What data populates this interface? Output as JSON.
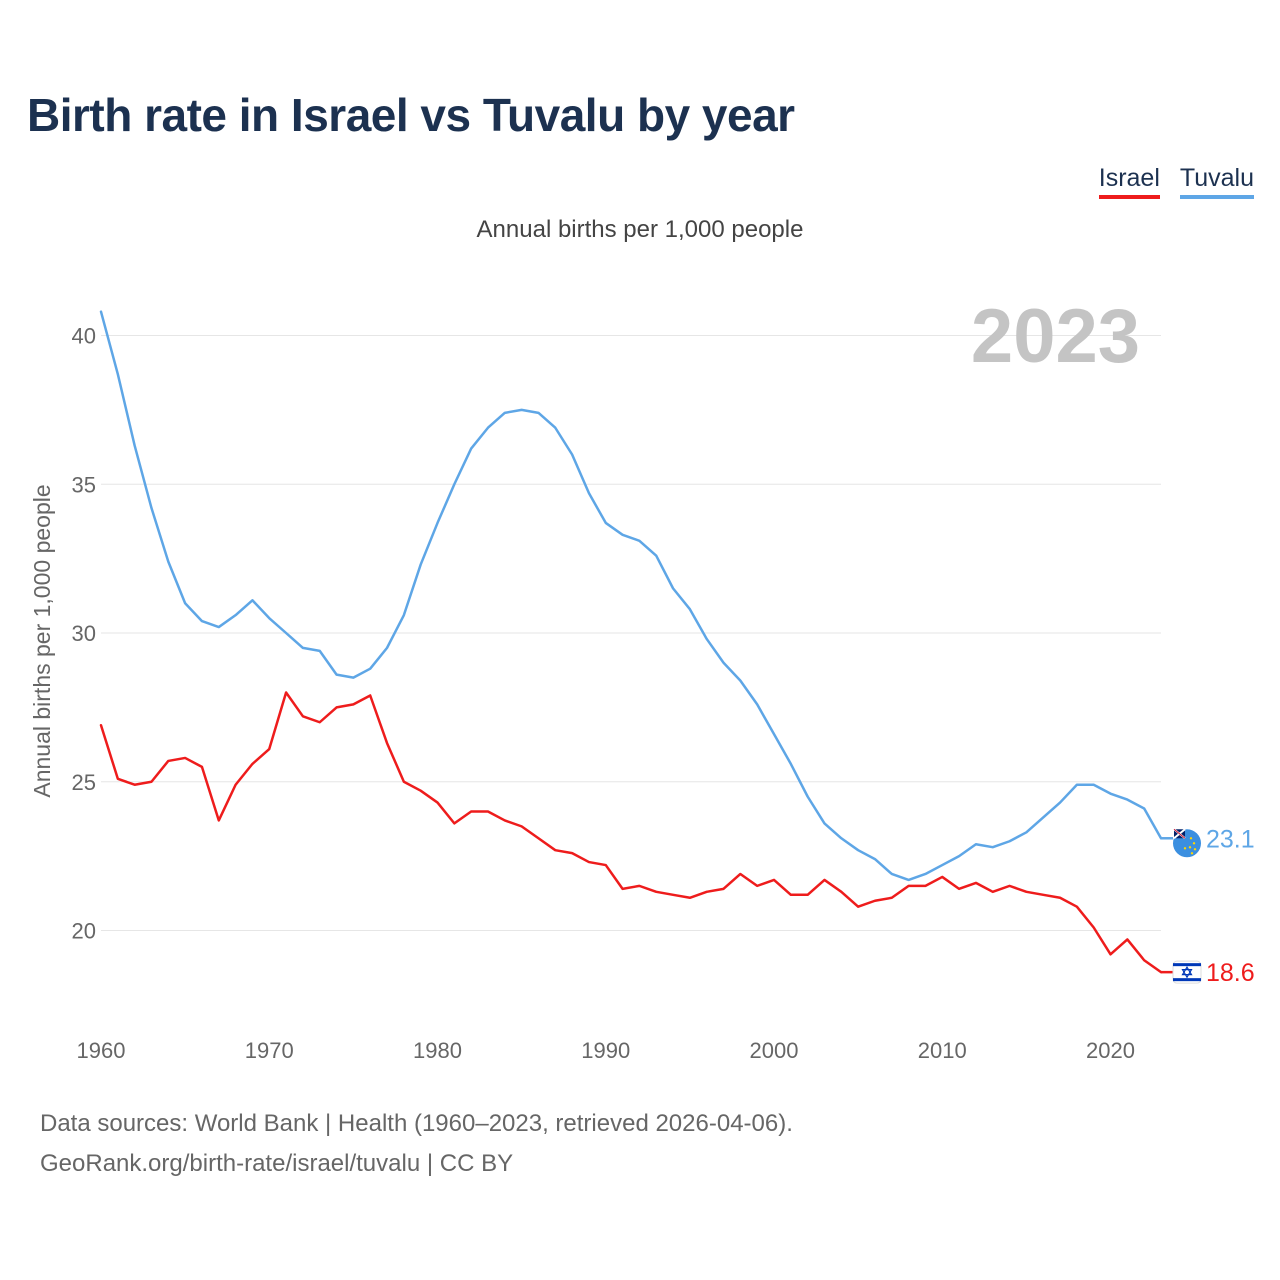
{
  "header": {
    "title": "Birth rate in Israel vs Tuvalu by year",
    "subtitle": "Annual births per 1,000 people"
  },
  "legend": {
    "israel_label": "Israel",
    "tuvalu_label": "Tuvalu"
  },
  "footer": {
    "source_line1": "Data sources: World Bank | Health (1960–2023, retrieved 2026-04-06).",
    "source_line2": "GeoRank.org/birth-rate/israel/tuvalu | CC BY"
  },
  "colors": {
    "israel": "#ee1c1c",
    "tuvalu": "#5ea6e6",
    "title": "#1c3150",
    "grid": "#e6e6e6",
    "year_overlay": "#c4c4c4"
  },
  "chart_data": {
    "type": "line",
    "title": "Birth rate in Israel vs Tuvalu by year",
    "xlabel": "",
    "ylabel": "Annual births per 1,000 people",
    "year_overlay": "2023",
    "xlim": [
      1960,
      2023
    ],
    "ylim": [
      17,
      41.5
    ],
    "x_ticks": [
      1960,
      1970,
      1980,
      1990,
      2000,
      2010,
      2020
    ],
    "y_ticks": [
      20,
      25,
      30,
      35,
      40
    ],
    "grid": true,
    "legend_position": "top-right",
    "x": [
      1960,
      1961,
      1962,
      1963,
      1964,
      1965,
      1966,
      1967,
      1968,
      1969,
      1970,
      1971,
      1972,
      1973,
      1974,
      1975,
      1976,
      1977,
      1978,
      1979,
      1980,
      1981,
      1982,
      1983,
      1984,
      1985,
      1986,
      1987,
      1988,
      1989,
      1990,
      1991,
      1992,
      1993,
      1994,
      1995,
      1996,
      1997,
      1998,
      1999,
      2000,
      2001,
      2002,
      2003,
      2004,
      2005,
      2006,
      2007,
      2008,
      2009,
      2010,
      2011,
      2012,
      2013,
      2014,
      2015,
      2016,
      2017,
      2018,
      2019,
      2020,
      2021,
      2022,
      2023
    ],
    "series": [
      {
        "name": "Israel",
        "end_label": "18.6",
        "values": [
          26.9,
          25.1,
          24.9,
          25.0,
          25.7,
          25.8,
          25.5,
          23.7,
          24.9,
          25.6,
          26.1,
          28.0,
          27.2,
          27.0,
          27.5,
          27.6,
          27.9,
          26.3,
          25.0,
          24.7,
          24.3,
          23.6,
          24.0,
          24.0,
          23.7,
          23.5,
          23.1,
          22.7,
          22.6,
          22.3,
          22.2,
          21.4,
          21.5,
          21.3,
          21.2,
          21.1,
          21.3,
          21.4,
          21.9,
          21.5,
          21.7,
          21.2,
          21.2,
          21.7,
          21.3,
          20.8,
          21.0,
          21.1,
          21.5,
          21.5,
          21.8,
          21.4,
          21.6,
          21.3,
          21.5,
          21.3,
          21.2,
          21.1,
          20.8,
          20.1,
          19.2,
          19.7,
          19.0,
          18.6
        ]
      },
      {
        "name": "Tuvalu",
        "end_label": "23.1",
        "values": [
          40.8,
          38.7,
          36.3,
          34.2,
          32.4,
          31.0,
          30.4,
          30.2,
          30.6,
          31.1,
          30.5,
          30.0,
          29.5,
          29.4,
          28.6,
          28.5,
          28.8,
          29.5,
          30.6,
          32.3,
          33.7,
          35.0,
          36.2,
          36.9,
          37.4,
          37.5,
          37.4,
          36.9,
          36.0,
          34.7,
          33.7,
          33.3,
          33.1,
          32.6,
          31.5,
          30.8,
          29.8,
          29.0,
          28.4,
          27.6,
          26.6,
          25.6,
          24.5,
          23.6,
          23.1,
          22.7,
          22.4,
          21.9,
          21.7,
          21.9,
          22.2,
          22.5,
          22.9,
          22.8,
          23.0,
          23.3,
          23.8,
          24.3,
          24.9,
          24.9,
          24.6,
          24.4,
          24.1,
          23.1
        ]
      }
    ]
  }
}
